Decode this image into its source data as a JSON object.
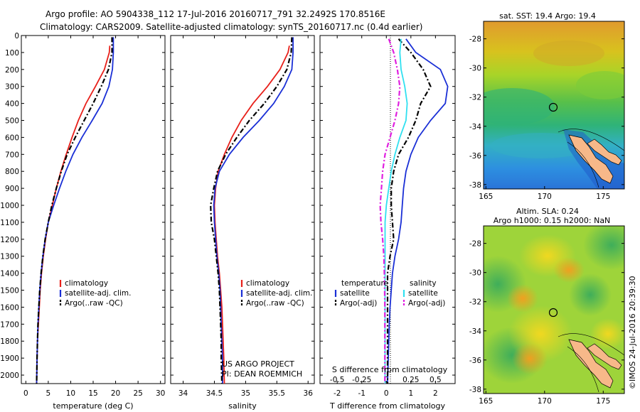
{
  "header": {
    "line1": "Argo profile: AO 5904338_112 17-Jul-2016 20160717_791 32.2492S 170.8516E",
    "line2": "Climatology: CARS2009. Satellite-adjusted climatology: synTS_20160717.nc (0.4d earlier)"
  },
  "colors": {
    "red": "#e8201a",
    "blue": "#1a2fd6",
    "black": "#000000",
    "cyan": "#30e0f0",
    "magenta": "#e020e0",
    "land": "#f7b889"
  },
  "chart_data": [
    {
      "type": "line",
      "id": "temperature",
      "xlabel": "temperature (deg C)",
      "ylabel": "",
      "xlim": [
        -1,
        31
      ],
      "ylim": [
        2050,
        0
      ],
      "xticks": [
        0,
        5,
        10,
        15,
        20,
        25,
        30
      ],
      "yticks": [
        0,
        100,
        200,
        300,
        400,
        500,
        600,
        700,
        800,
        900,
        1000,
        1100,
        1200,
        1300,
        1400,
        1500,
        1600,
        1700,
        1800,
        1900,
        2000
      ],
      "series": [
        {
          "name": "climatology",
          "color": "#e8201a",
          "style": "solid",
          "x": [
            18.7,
            18.6,
            17.5,
            15.5,
            13.4,
            11.7,
            10.3,
            9.0,
            7.8,
            6.8,
            5.9,
            5.0,
            4.4,
            3.9,
            3.5,
            3.2,
            3.0,
            2.8,
            2.6,
            2.5,
            2.4
          ],
          "y": [
            60,
            100,
            200,
            300,
            400,
            500,
            600,
            700,
            800,
            900,
            1000,
            1100,
            1200,
            1300,
            1400,
            1500,
            1600,
            1700,
            1800,
            1900,
            2050
          ]
        },
        {
          "name": "satellite-adj. clim.",
          "color": "#1a2fd6",
          "style": "solid",
          "x": [
            19.5,
            19.5,
            19.3,
            18.5,
            17.0,
            14.8,
            12.5,
            10.5,
            8.9,
            7.5,
            6.2,
            5.0,
            4.3,
            3.8,
            3.4,
            3.1,
            2.9,
            2.7,
            2.6,
            2.5,
            2.4
          ],
          "y": [
            10,
            100,
            200,
            300,
            400,
            500,
            600,
            700,
            800,
            900,
            1000,
            1100,
            1200,
            1300,
            1400,
            1500,
            1600,
            1700,
            1800,
            1900,
            2050
          ]
        },
        {
          "name": "Argo(..raw -QC)",
          "color": "#000000",
          "style": "dash",
          "x": [
            19.2,
            19.2,
            18.4,
            16.8,
            15.0,
            13.0,
            11.0,
            9.2,
            7.9,
            6.8,
            5.8,
            5.0,
            4.3,
            3.8,
            3.4,
            3.1,
            2.9,
            2.7,
            2.6,
            2.5,
            2.4
          ],
          "y": [
            10,
            100,
            200,
            300,
            400,
            500,
            600,
            700,
            800,
            900,
            1000,
            1100,
            1200,
            1300,
            1400,
            1500,
            1600,
            1700,
            1800,
            1900,
            2050
          ]
        }
      ],
      "legend": [
        "climatology",
        "satellite-adj. clim.",
        "Argo(..raw -QC)"
      ]
    },
    {
      "type": "line",
      "id": "salinity",
      "xlabel": "salinity",
      "ylabel": "",
      "xlim": [
        33.8,
        36.1
      ],
      "ylim": [
        2050,
        0
      ],
      "xticks": [
        34,
        34.5,
        35,
        35.5,
        36
      ],
      "series": [
        {
          "name": "climatology",
          "color": "#e8201a",
          "style": "solid",
          "x": [
            35.7,
            35.68,
            35.55,
            35.35,
            35.12,
            34.93,
            34.78,
            34.66,
            34.56,
            34.52,
            34.5,
            34.51,
            34.53,
            34.55,
            34.58,
            34.6,
            34.62,
            34.63,
            34.64,
            34.65,
            34.66
          ],
          "y": [
            60,
            100,
            200,
            300,
            400,
            500,
            600,
            700,
            800,
            900,
            1000,
            1100,
            1200,
            1300,
            1400,
            1500,
            1600,
            1700,
            1800,
            1900,
            2050
          ]
        },
        {
          "name": "satellite-adj. clim.",
          "color": "#1a2fd6",
          "style": "solid",
          "x": [
            35.76,
            35.76,
            35.74,
            35.62,
            35.45,
            35.22,
            34.96,
            34.74,
            34.58,
            34.51,
            34.49,
            34.5,
            34.52,
            34.54,
            34.57,
            34.59,
            34.6,
            34.61,
            34.62,
            34.63,
            34.63
          ],
          "y": [
            10,
            100,
            200,
            300,
            400,
            500,
            600,
            700,
            800,
            900,
            1000,
            1100,
            1200,
            1300,
            1400,
            1500,
            1600,
            1700,
            1800,
            1900,
            2050
          ]
        },
        {
          "name": "Argo(..raw -QC)",
          "color": "#000000",
          "style": "dash",
          "x": [
            35.74,
            35.73,
            35.66,
            35.5,
            35.3,
            35.06,
            34.86,
            34.68,
            34.55,
            34.49,
            34.44,
            34.45,
            34.5,
            34.53,
            34.56,
            34.58,
            34.59,
            34.6,
            34.61,
            34.61,
            34.62
          ],
          "y": [
            10,
            100,
            200,
            300,
            400,
            500,
            600,
            700,
            800,
            900,
            1000,
            1100,
            1200,
            1300,
            1400,
            1500,
            1600,
            1700,
            1800,
            1900,
            2050
          ]
        }
      ],
      "legend": [
        "climatology",
        "satellite-adj. clim.",
        "Argo(..raw -QC)"
      ],
      "annotation": [
        "US ARGO PROJECT",
        "PI: DEAN ROEMMICH"
      ]
    },
    {
      "type": "line",
      "id": "difference",
      "xlabel": "T difference from climatology",
      "xlabel2": "S difference from climatology",
      "xlim": [
        -2.7,
        2.8
      ],
      "ylim": [
        2050,
        0
      ],
      "xticks": [
        -2,
        -1,
        0,
        1,
        2
      ],
      "xticks2": [
        -0.5,
        -0.25,
        0,
        0.25,
        0.5
      ],
      "xticklabels2": [
        "-0.5",
        "-0.25",
        "0",
        "0.25",
        "0.5"
      ],
      "series": [
        {
          "name": "temperature satellite",
          "color": "#1a2fd6",
          "style": "solid",
          "x": [
            0.8,
            1.2,
            2.2,
            2.5,
            2.4,
            1.8,
            1.3,
            1.0,
            0.8,
            0.7,
            0.65,
            0.6,
            0.5,
            0.35,
            0.25,
            0.2,
            0.15,
            0.12,
            0.1,
            0.08,
            0.05
          ],
          "y": [
            20,
            100,
            200,
            300,
            400,
            500,
            600,
            700,
            800,
            900,
            1000,
            1100,
            1200,
            1300,
            1400,
            1500,
            1600,
            1700,
            1800,
            1900,
            2050
          ]
        },
        {
          "name": "temperature Argo(-adj)",
          "color": "#000000",
          "style": "dash",
          "x": [
            0.5,
            1.0,
            1.5,
            1.8,
            1.4,
            1.2,
            0.9,
            0.5,
            0.3,
            0.2,
            0.2,
            0.25,
            0.3,
            0.15,
            0.05,
            0.05,
            0.05,
            0.05,
            0.05,
            0.05,
            0.05
          ],
          "y": [
            20,
            100,
            200,
            300,
            400,
            500,
            600,
            700,
            800,
            900,
            1000,
            1100,
            1200,
            1300,
            1400,
            1500,
            1600,
            1700,
            1800,
            1900,
            2050
          ]
        },
        {
          "name": "salinity satellite",
          "color": "#30e0f0",
          "style": "solid",
          "x": [
            0.6,
            0.55,
            0.6,
            0.75,
            0.85,
            0.8,
            0.55,
            0.35,
            0.2,
            0.1,
            0.0,
            -0.05,
            -0.05,
            -0.05,
            -0.05,
            -0.05,
            -0.05,
            -0.05,
            -0.05,
            -0.05,
            -0.05
          ],
          "y": [
            20,
            100,
            200,
            300,
            400,
            500,
            600,
            700,
            800,
            900,
            1000,
            1100,
            1200,
            1300,
            1400,
            1500,
            1600,
            1700,
            1800,
            1900,
            2050
          ]
        },
        {
          "name": "salinity Argo(-adj)",
          "color": "#e020e0",
          "style": "dash",
          "x": [
            0.1,
            0.3,
            0.45,
            0.55,
            0.5,
            0.35,
            0.15,
            -0.05,
            -0.15,
            -0.2,
            -0.25,
            -0.22,
            -0.15,
            -0.1,
            -0.08,
            -0.07,
            -0.06,
            -0.06,
            -0.06,
            -0.06,
            -0.06
          ],
          "y": [
            20,
            100,
            200,
            300,
            400,
            500,
            600,
            700,
            800,
            900,
            1000,
            1100,
            1200,
            1300,
            1400,
            1500,
            1600,
            1700,
            1800,
            1900,
            2050
          ]
        }
      ],
      "legend_groups": [
        {
          "title": "temperature",
          "items": [
            "satellite",
            "Argo(-adj)"
          ]
        },
        {
          "title": "salinity",
          "items": [
            "satellite",
            "Argo(-adj)"
          ]
        }
      ]
    },
    {
      "type": "heatmap",
      "id": "sst_map",
      "title": "sat. SST: 19.4  Argo: 19.4",
      "xticks": [
        165,
        170,
        175
      ],
      "yticks": [
        -28,
        -30,
        -32,
        -34,
        -36,
        -38
      ],
      "xlim": [
        164.8,
        176.8
      ],
      "ylim": [
        -38.3,
        -26.8
      ],
      "float_position": [
        170.85,
        -32.25
      ]
    },
    {
      "type": "heatmap",
      "id": "sla_map",
      "title1": "Altim. SLA: 0.24",
      "title2": "Argo h1000: 0.15 h2000: NaN",
      "xticks": [
        165,
        170,
        175
      ],
      "yticks": [
        -28,
        -30,
        -32,
        -34,
        -36,
        -38
      ],
      "xlim": [
        164.8,
        176.8
      ],
      "ylim": [
        -38.3,
        -26.8
      ],
      "float_position": [
        170.85,
        -32.25
      ]
    }
  ],
  "credit": "©IMOS 24-Jul-2016 20:39:30"
}
